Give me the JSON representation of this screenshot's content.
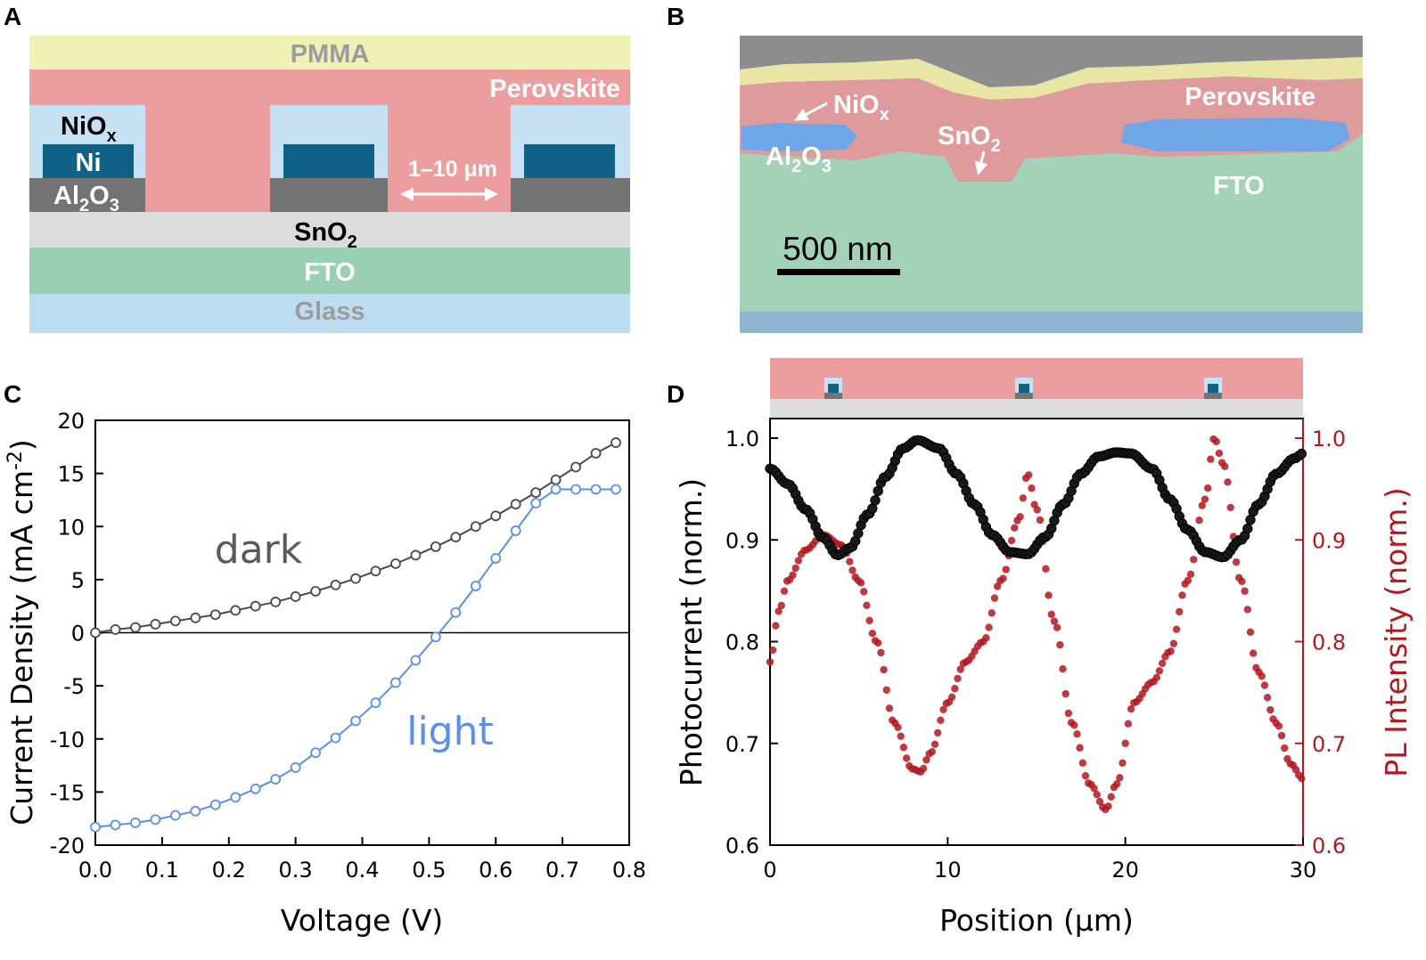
{
  "panels": {
    "a": "A",
    "b": "B",
    "c": "C",
    "d": "D"
  },
  "schematic": {
    "pmma": "PMMA",
    "perovskite": "Perovskite",
    "niox": {
      "base": "NiO",
      "sub": "x"
    },
    "ni": "Ni",
    "al2o3": {
      "a": "Al",
      "s1": "2",
      "b": "O",
      "s2": "3"
    },
    "spacing": "1–10 μm",
    "sno2": {
      "base": "SnO",
      "sub": "2"
    },
    "fto": "FTO",
    "glass": "Glass"
  },
  "sem": {
    "niox": {
      "base": "NiO",
      "sub": "x"
    },
    "sno2": {
      "base": "SnO",
      "sub": "2"
    },
    "al2o3": {
      "a": "Al",
      "s1": "2",
      "b": "O",
      "s2": "3"
    },
    "perovskite": "Perovskite",
    "fto": "FTO",
    "scalebar": "500 nm"
  },
  "colors": {
    "pmma": "#eef0b4",
    "perovskite": "#ec9e9e",
    "niox": "#c6e0f4",
    "ni": "#0f6186",
    "al2o3": "#737373",
    "sno2": "#dcdcdc",
    "fto": "#99d0b3",
    "glass": "#bcdcf1",
    "dark": "#4a4a4a",
    "light": "#5a8ee8",
    "photocurrent": "#000000",
    "pl": "#b3181e"
  },
  "chart_data": [
    {
      "type": "line",
      "panel": "C",
      "xlabel": "Voltage (V)",
      "ylabel": {
        "main": "Current Density (mA cm",
        "sup": "-2",
        "end": ")"
      },
      "xlim": [
        0.0,
        0.8
      ],
      "ylim": [
        -20,
        20
      ],
      "xticks": [
        "0.0",
        "0.1",
        "0.2",
        "0.3",
        "0.4",
        "0.5",
        "0.6",
        "0.7",
        "0.8"
      ],
      "yticks": [
        "20",
        "15",
        "10",
        "5",
        "0",
        "-5",
        "-10",
        "-15",
        "-20"
      ],
      "x": [
        0.0,
        0.03,
        0.06,
        0.09,
        0.12,
        0.15,
        0.18,
        0.21,
        0.24,
        0.27,
        0.3,
        0.33,
        0.36,
        0.39,
        0.42,
        0.45,
        0.48,
        0.51,
        0.54,
        0.57,
        0.6,
        0.63,
        0.66,
        0.69,
        0.72,
        0.75,
        0.78
      ],
      "series": [
        {
          "name": "dark",
          "values": [
            0.0,
            0.3,
            0.5,
            0.8,
            1.1,
            1.4,
            1.7,
            2.1,
            2.5,
            2.9,
            3.4,
            3.9,
            4.5,
            5.1,
            5.8,
            6.5,
            7.3,
            8.1,
            9.0,
            10.0,
            11.0,
            12.1,
            13.2,
            14.4,
            15.6,
            16.9,
            17.9
          ]
        },
        {
          "name": "light",
          "values": [
            -18.3,
            -18.1,
            -17.9,
            -17.6,
            -17.2,
            -16.8,
            -16.2,
            -15.5,
            -14.7,
            -13.8,
            -12.7,
            -11.3,
            -9.9,
            -8.3,
            -6.6,
            -4.7,
            -2.6,
            -0.4,
            1.9,
            4.4,
            7.0,
            9.6,
            12.2,
            13.5,
            13.5,
            13.5,
            13.5
          ]
        }
      ]
    },
    {
      "type": "scatter",
      "panel": "D",
      "xlabel": "Position (μm)",
      "ylabel_left": "Photocurrent (norm.)",
      "ylabel_right": "PL Intensity (norm.)",
      "xlim": [
        0,
        30
      ],
      "ylim_left": [
        0.6,
        1.0
      ],
      "ylim_right": [
        0.6,
        1.0
      ],
      "xticks": [
        "0",
        "10",
        "20",
        "30"
      ],
      "yticks_left": [
        "1.0",
        "0.9",
        "0.8",
        "0.7",
        "0.6"
      ],
      "yticks_right": [
        "1.0",
        "0.9",
        "0.8",
        "0.7",
        "0.6"
      ],
      "photocurrent": {
        "x": [
          0,
          1,
          2,
          3,
          3.8,
          4.5,
          5.5,
          6.5,
          7.5,
          8.3,
          9.5,
          10.5,
          11.5,
          12.5,
          13.5,
          14.5,
          15.5,
          16.5,
          17.5,
          18.5,
          19.5,
          20.3,
          21.5,
          22.5,
          23.5,
          24.5,
          25.5,
          26.5,
          27.5,
          28.5,
          29.5,
          30
        ],
        "y": [
          0.97,
          0.955,
          0.93,
          0.902,
          0.885,
          0.892,
          0.925,
          0.962,
          0.99,
          0.998,
          0.99,
          0.965,
          0.935,
          0.905,
          0.888,
          0.886,
          0.903,
          0.935,
          0.965,
          0.982,
          0.986,
          0.985,
          0.97,
          0.94,
          0.91,
          0.888,
          0.883,
          0.9,
          0.935,
          0.965,
          0.98,
          0.985
        ]
      },
      "pl": {
        "x": [
          0,
          0.5,
          1,
          2,
          3,
          4,
          5,
          6,
          7,
          8,
          8.5,
          9,
          10,
          11,
          12,
          13,
          14,
          14.5,
          15,
          16,
          17,
          18,
          18.9,
          19.5,
          20.5,
          21.5,
          22.5,
          23.5,
          24.5,
          25,
          25.5,
          26.5,
          27.5,
          28.5,
          29.3,
          30
        ],
        "y": [
          0.78,
          0.83,
          0.86,
          0.89,
          0.905,
          0.895,
          0.86,
          0.8,
          0.72,
          0.675,
          0.672,
          0.69,
          0.74,
          0.78,
          0.8,
          0.86,
          0.92,
          0.965,
          0.93,
          0.82,
          0.72,
          0.66,
          0.635,
          0.66,
          0.74,
          0.76,
          0.79,
          0.86,
          0.94,
          1.0,
          0.975,
          0.86,
          0.77,
          0.72,
          0.68,
          0.665
        ]
      }
    }
  ]
}
